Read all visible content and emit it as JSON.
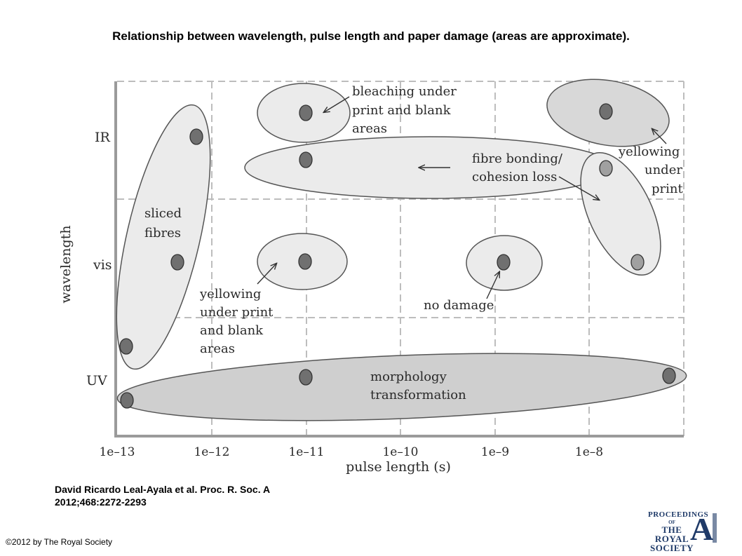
{
  "title": "Relationship between wavelength, pulse length and paper damage (areas are approximate).",
  "diagram": {
    "y_axis_label": "wavelength",
    "y_ticks": [
      "IR",
      "vis",
      "UV"
    ],
    "x_axis_label": "pulse length (s)",
    "x_ticks": [
      "1e–13",
      "1e–12",
      "1e–11",
      "1e–10",
      "1e–9",
      "1e–8"
    ],
    "labels": {
      "sliced_fibres": [
        "sliced",
        "fibres"
      ],
      "bleaching": [
        "bleaching under",
        "print and blank",
        "areas"
      ],
      "fibre_bonding": [
        "fibre bonding/",
        "cohesion loss"
      ],
      "yellowing_print_right": [
        "yellowing",
        "under",
        "print"
      ],
      "yellowing_print_blank": [
        "yellowing",
        "under print",
        "and blank",
        "areas"
      ],
      "no_damage": "no damage",
      "morphology": [
        "morphology",
        "transformation"
      ]
    },
    "colors": {
      "region_light": "#ebebeb",
      "region_dark": "#cfcfcf",
      "point_fill": "#707070",
      "point_light": "#a0a0a0",
      "stroke": "#555555",
      "grid": "#bdbdbd"
    }
  },
  "citation": [
    "David Ricardo Leal-Ayala et al. Proc. R. Soc. A",
    "2012;468:2272-2293"
  ],
  "copyright": "©2012 by The Royal Society",
  "logo": {
    "lines": [
      "PROCEEDINGS",
      "OF",
      "THE ROYAL",
      "SOCIETY"
    ],
    "letter": "A"
  }
}
